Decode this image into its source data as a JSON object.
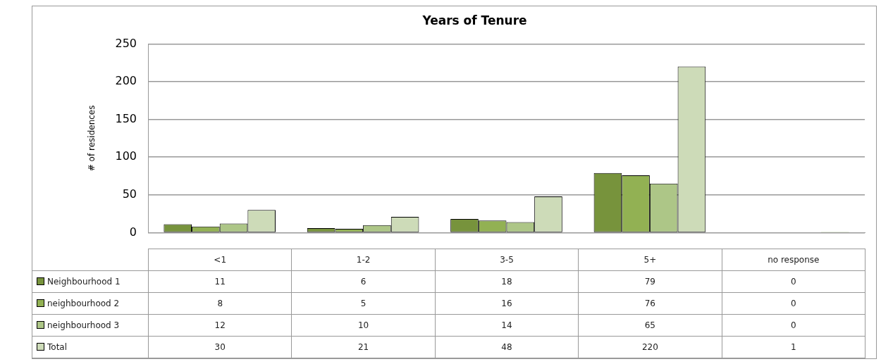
{
  "chart_data": {
    "type": "bar",
    "title": "Years of Tenure",
    "ylabel": "# of residences",
    "categories": [
      "<1",
      "1-2",
      "3-5",
      "5+",
      "no response"
    ],
    "series": [
      {
        "name": "Neighbourhood 1",
        "color": "#77933c",
        "values": [
          11,
          6,
          18,
          79,
          0
        ]
      },
      {
        "name": "neighbourhood 2",
        "color": "#92b153",
        "values": [
          8,
          5,
          16,
          76,
          0
        ]
      },
      {
        "name": "neighbourhood 3",
        "color": "#adc687",
        "values": [
          12,
          10,
          14,
          65,
          0
        ]
      },
      {
        "name": "Total",
        "color": "#cddbb8",
        "values": [
          30,
          21,
          48,
          220,
          1
        ]
      }
    ],
    "ylim": [
      0,
      250
    ],
    "yticks": [
      0,
      50,
      100,
      150,
      200,
      250
    ],
    "grid": "y",
    "legend": "bottom",
    "data_labels": true
  }
}
